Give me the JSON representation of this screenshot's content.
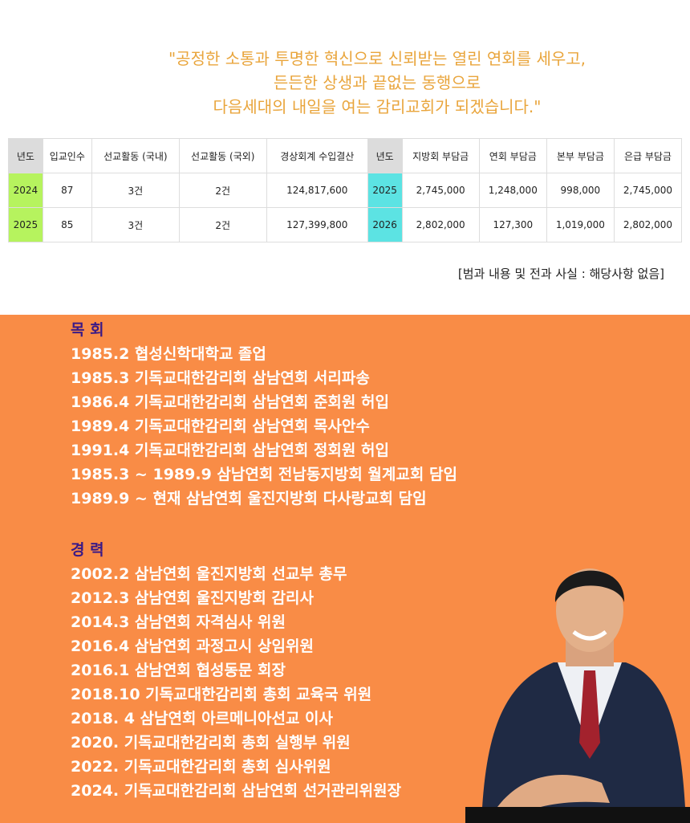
{
  "quote": {
    "lines": [
      "\"공정한 소통과 투명한 혁신으로 신뢰받는 열린 연회를 세우고,",
      "든든한 상생과 끝없는 동행으로",
      "다음세대의 내일을 여는 감리교회가 되겠습니다.\""
    ]
  },
  "table": {
    "header": [
      "년도",
      "입교인수",
      "선교활동 (국내)",
      "선교활동 (국외)",
      "경상회계 수입결산",
      "년도",
      "지방회 부담금",
      "연회 부담금",
      "본부 부담금",
      "은급 부담금"
    ],
    "rows": [
      [
        "2024",
        "87",
        "3건",
        "2건",
        "124,817,600",
        "2025",
        "2,745,000",
        "1,248,000",
        "998,000",
        "2,745,000"
      ],
      [
        "2025",
        "85",
        "3건",
        "2건",
        "127,399,800",
        "2026",
        "2,802,000",
        "127,300",
        "1,019,000",
        "2,802,000"
      ]
    ],
    "note": "[범과 내용 및 전과 사실 : 해당사항 없음]"
  },
  "sections": [
    {
      "title": "목 회",
      "items": [
        "1985.2 협성신학대학교 졸업",
        "1985.3 기독교대한감리회 삼남연회 서리파송",
        "1986.4 기독교대한감리회 삼남연회 준회원 허입",
        "1989.4 기독교대한감리회 삼남연회 목사안수",
        "1991.4 기독교대한감리회 삼남연회 정회원 허입",
        "1985.3 ~ 1989.9 삼남연회 전남동지방회 월계교회 담임",
        "1989.9 ~ 현재 삼남연회 울진지방회 다사랑교회 담임"
      ]
    },
    {
      "title": "경 력",
      "items": [
        "2002.2 삼남연회 울진지방회 선교부 총무",
        "2012.3 삼남연회 울진지방회 감리사",
        "2014.3 삼남연회 자격심사 위원",
        "2016.4 삼남연회 과정고시 상임위원",
        "2016.1 삼남연회 협성동문 회장",
        "2018.10 기독교대한감리회 총회 교육국 위원",
        "2018. 4 삼남연회 아르메니아선교 이사",
        "2020. 기독교대한감리회 총회 실행부 위원",
        "2022. 기독교대한감리회 총회 심사위원",
        "2024. 기독교대한감리회 삼남연회 선거관리위원장"
      ]
    }
  ]
}
